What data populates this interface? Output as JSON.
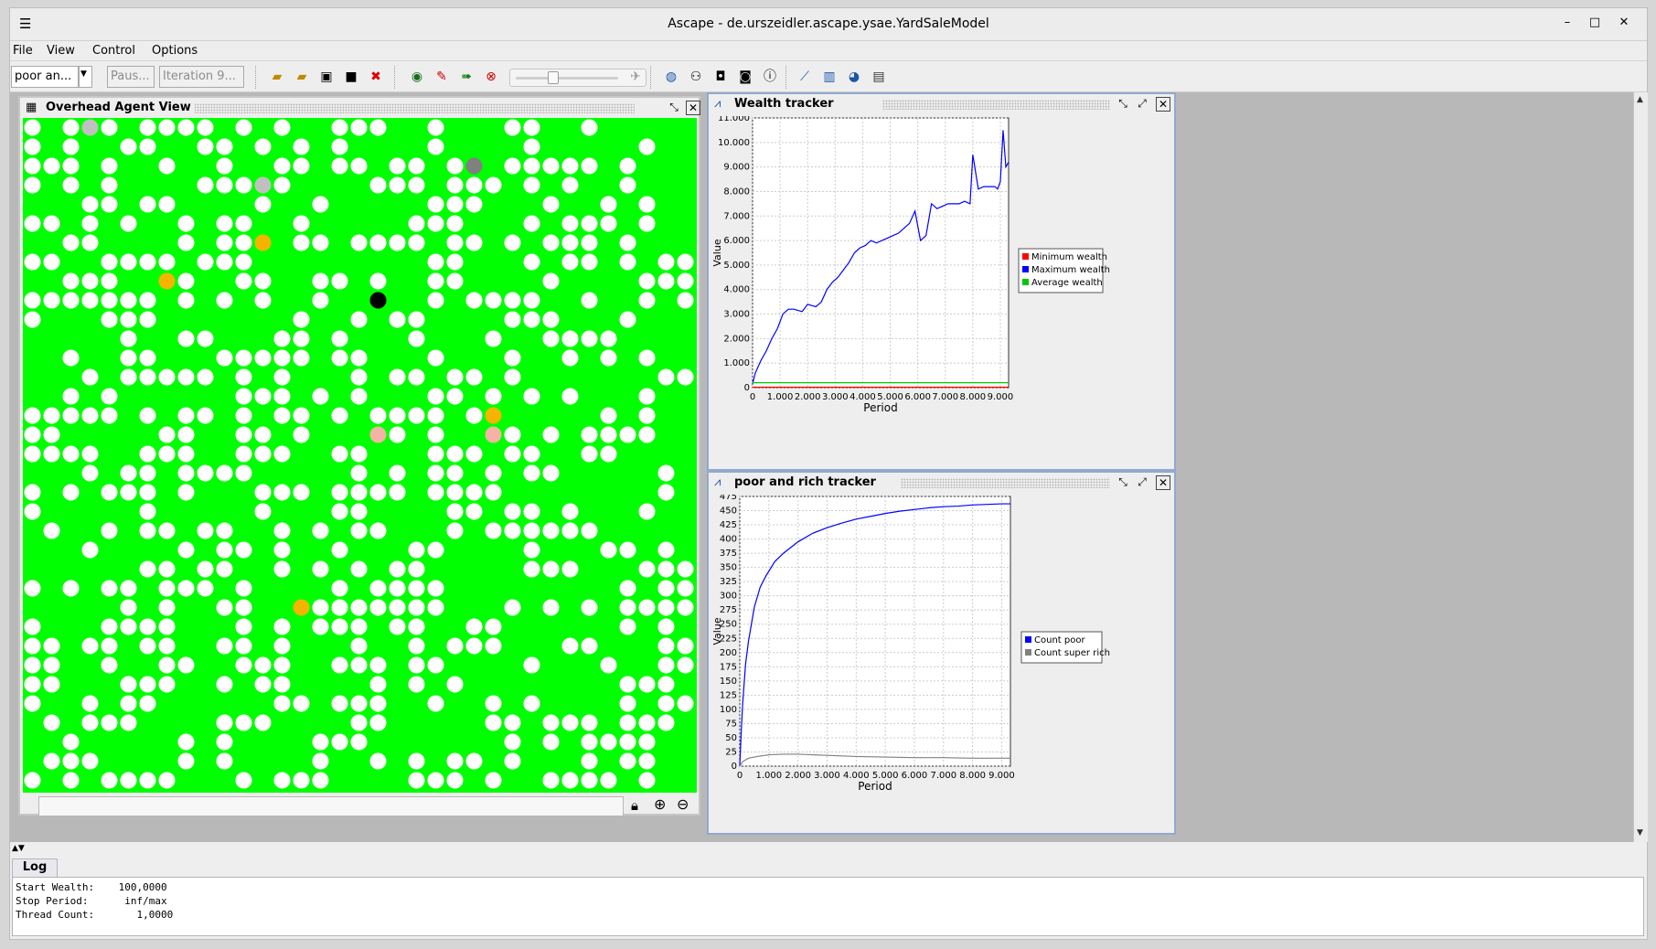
{
  "window": {
    "title": "Ascape - de.urszeidler.ascape.ysae.YardSaleModel"
  },
  "menu": [
    "File",
    "View",
    "Control",
    "Options"
  ],
  "toolbar": {
    "view_select": "poor an...",
    "pause_field": "Paus...",
    "iteration_field": "Iteration 9...",
    "speed_level": 0.35
  },
  "overhead_view": {
    "title": "Overhead Agent View",
    "background_color": "#00ff00",
    "agent_colors": {
      "white": "#ffffff",
      "blue": "#0000ff",
      "black": "#000000",
      "gray": "#808080",
      "lightgray": "#c0c0c0",
      "orange": "#f5b400",
      "pink": "#f4b3a4"
    }
  },
  "wealth_tracker": {
    "title": "Wealth tracker",
    "chart_data": {
      "type": "line",
      "xlabel": "Period",
      "ylabel": "Value",
      "xlim": [
        0,
        9300
      ],
      "ylim": [
        0,
        11000
      ],
      "xticks": [
        "0",
        "1.000",
        "2.000",
        "3.000",
        "4.000",
        "5.000",
        "6.000",
        "7.000",
        "8.000",
        "9.000"
      ],
      "yticks": [
        "0",
        "1.000",
        "2.000",
        "3.000",
        "4.000",
        "5.000",
        "6.000",
        "7.000",
        "8.000",
        "9.000",
        "10.000",
        "11.000"
      ],
      "legend": "right",
      "grid": true,
      "series": [
        {
          "name": "Minimum wealth",
          "color": "#ff0000",
          "x": [
            0,
            9300
          ],
          "y": [
            20,
            20
          ]
        },
        {
          "name": "Maximum wealth",
          "color": "#0000ff",
          "x": [
            0,
            100,
            300,
            500,
            700,
            900,
            1100,
            1300,
            1500,
            1800,
            2000,
            2300,
            2500,
            2700,
            2900,
            3100,
            3300,
            3500,
            3700,
            3900,
            4100,
            4300,
            4500,
            4700,
            4900,
            5100,
            5300,
            5500,
            5700,
            5900,
            6100,
            6300,
            6500,
            6700,
            6900,
            7100,
            7300,
            7500,
            7700,
            7900,
            8000,
            8200,
            8400,
            8600,
            8800,
            8900,
            9000,
            9100,
            9200,
            9300
          ],
          "y": [
            150,
            600,
            1100,
            1500,
            2000,
            2400,
            3000,
            3200,
            3200,
            3100,
            3400,
            3300,
            3500,
            4000,
            4300,
            4500,
            4800,
            5100,
            5500,
            5700,
            5800,
            6000,
            5900,
            6000,
            6100,
            6200,
            6300,
            6500,
            6700,
            7200,
            6000,
            6200,
            7500,
            7300,
            7400,
            7500,
            7500,
            7500,
            7600,
            7500,
            9500,
            8100,
            8200,
            8200,
            8200,
            8100,
            8400,
            10500,
            9000,
            9200
          ]
        },
        {
          "name": "Average wealth",
          "color": "#00c800",
          "x": [
            0,
            9300
          ],
          "y": [
            200,
            200
          ]
        }
      ]
    }
  },
  "poor_rich_tracker": {
    "title": "poor and rich tracker",
    "chart_data": {
      "type": "line",
      "xlabel": "Period",
      "ylabel": "Value",
      "xlim": [
        0,
        9300
      ],
      "ylim": [
        0,
        475
      ],
      "xticks": [
        "0",
        "1.000",
        "2.000",
        "3.000",
        "4.000",
        "5.000",
        "6.000",
        "7.000",
        "8.000",
        "9.000"
      ],
      "yticks": [
        "0",
        "25",
        "50",
        "75",
        "100",
        "125",
        "150",
        "175",
        "200",
        "225",
        "250",
        "275",
        "300",
        "325",
        "350",
        "375",
        "400",
        "425",
        "450",
        "475"
      ],
      "legend": "right",
      "grid": true,
      "series": [
        {
          "name": "Count poor",
          "color": "#0000ff",
          "x": [
            0,
            50,
            100,
            200,
            300,
            400,
            500,
            700,
            900,
            1200,
            1500,
            2000,
            2500,
            3000,
            3500,
            4000,
            4500,
            5000,
            5500,
            6000,
            6500,
            7000,
            7500,
            8000,
            8500,
            9000,
            9300
          ],
          "y": [
            0,
            60,
            110,
            180,
            220,
            250,
            280,
            315,
            335,
            360,
            375,
            395,
            410,
            420,
            428,
            435,
            440,
            445,
            449,
            452,
            455,
            457,
            458,
            460,
            461,
            462,
            462
          ]
        },
        {
          "name": "Count super rich",
          "color": "#808080",
          "x": [
            0,
            100,
            300,
            600,
            1000,
            1500,
            2000,
            2500,
            3000,
            3500,
            4000,
            5000,
            6000,
            7000,
            8000,
            9000,
            9300
          ],
          "y": [
            0,
            8,
            14,
            17,
            20,
            21,
            21,
            20,
            19,
            18,
            17,
            16,
            15,
            15,
            14,
            14,
            14
          ]
        }
      ]
    }
  },
  "log": {
    "tab": "Log",
    "lines": [
      "Start Wealth:    100,0000",
      "Stop Period:      inf/max",
      "Thread Count:       1,0000"
    ]
  }
}
